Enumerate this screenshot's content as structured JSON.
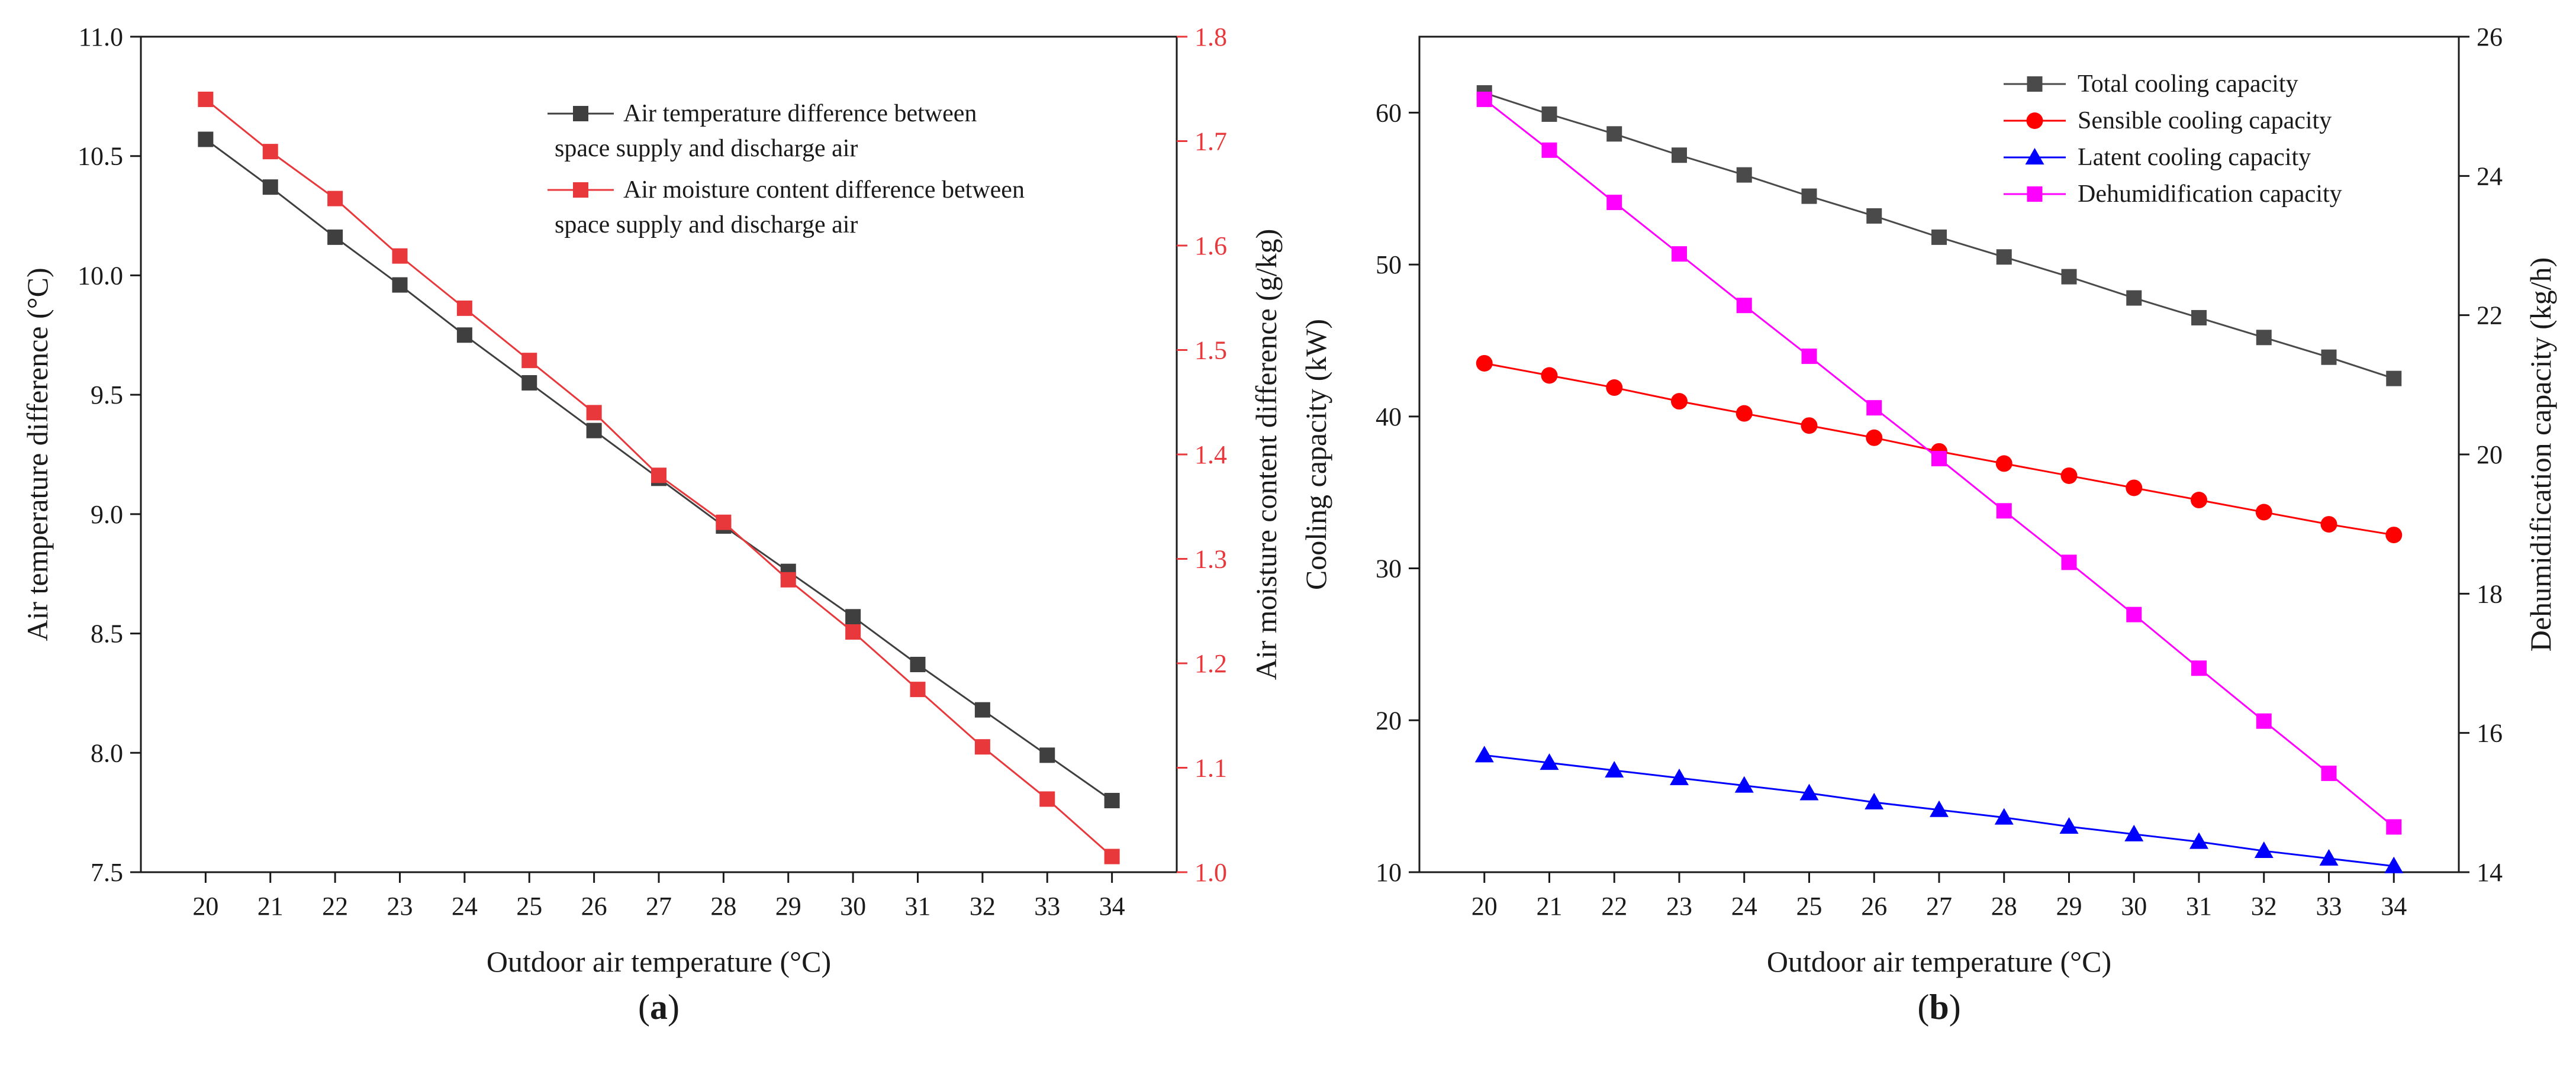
{
  "chart_data": [
    {
      "type": "line",
      "panel_label": "(a)",
      "panel_letter": "a",
      "xlabel": "Outdoor air temperature (°C)",
      "ylabel": "Air temperature difference (°C)",
      "y2label": "Air moisture content difference (g/kg)",
      "x": [
        20,
        21,
        22,
        23,
        24,
        25,
        26,
        27,
        28,
        29,
        30,
        31,
        32,
        33,
        34
      ],
      "xlim": [
        19,
        35
      ],
      "ylim": [
        7.5,
        11.0
      ],
      "yticks": [
        "7.5",
        "8.0",
        "8.5",
        "9.0",
        "9.5",
        "10.0",
        "10.5",
        "11.0"
      ],
      "y2lim": [
        1.0,
        1.8
      ],
      "y2ticks": [
        "1.0",
        "1.1",
        "1.2",
        "1.3",
        "1.4",
        "1.5",
        "1.6",
        "1.7",
        "1.8"
      ],
      "legend_position": "top-right",
      "series": [
        {
          "name_lines": [
            "Air temperature difference between",
            "space supply and discharge air"
          ],
          "axis": "left",
          "color": "#3f3f3f",
          "marker": "square",
          "values": [
            10.57,
            10.37,
            10.16,
            9.96,
            9.75,
            9.55,
            9.35,
            9.15,
            8.95,
            8.76,
            8.57,
            8.37,
            8.18,
            7.99,
            7.8
          ]
        },
        {
          "name_lines": [
            "Air moisture content difference between",
            "space supply and discharge air"
          ],
          "axis": "right",
          "color": "#e8383b",
          "marker": "square",
          "values": [
            1.74,
            1.69,
            1.645,
            1.59,
            1.54,
            1.49,
            1.44,
            1.38,
            1.335,
            1.28,
            1.23,
            1.175,
            1.12,
            1.07,
            1.015
          ]
        }
      ]
    },
    {
      "type": "line",
      "panel_label": "(b)",
      "panel_letter": "b",
      "xlabel": "Outdoor air temperature (°C)",
      "ylabel": "Cooling capacity (kW)",
      "y2label": "Dehumidification capacity (kg/h)",
      "x": [
        20,
        21,
        22,
        23,
        24,
        25,
        26,
        27,
        28,
        29,
        30,
        31,
        32,
        33,
        34
      ],
      "xlim": [
        19,
        35
      ],
      "ylim": [
        10,
        65
      ],
      "yticks": [
        "10",
        "20",
        "30",
        "40",
        "50",
        "60"
      ],
      "y2lim": [
        14,
        26
      ],
      "y2ticks": [
        "14",
        "16",
        "18",
        "20",
        "22",
        "24",
        "26"
      ],
      "legend_position": "top-right",
      "series": [
        {
          "name": "Total cooling capacity",
          "axis": "left",
          "color": "#4a4a4a",
          "marker": "square",
          "values": [
            61.3,
            59.9,
            58.6,
            57.2,
            55.9,
            54.5,
            53.2,
            51.8,
            50.5,
            49.2,
            47.8,
            46.5,
            45.2,
            43.9,
            42.5
          ]
        },
        {
          "name": "Sensible cooling capacity",
          "axis": "left",
          "color": "#ff0000",
          "marker": "circle",
          "values": [
            43.5,
            42.7,
            41.9,
            41.0,
            40.2,
            39.4,
            38.6,
            37.7,
            36.9,
            36.1,
            35.3,
            34.5,
            33.7,
            32.9,
            32.2
          ]
        },
        {
          "name": "Latent cooling capacity",
          "axis": "left",
          "color": "#0000ff",
          "marker": "triangle",
          "values": [
            17.7,
            17.2,
            16.7,
            16.2,
            15.7,
            15.2,
            14.6,
            14.1,
            13.6,
            13.0,
            12.5,
            12.0,
            11.4,
            10.9,
            10.4
          ]
        },
        {
          "name": "Dehumidification capacity",
          "axis": "right",
          "color": "#ff00ff",
          "marker": "square",
          "values": [
            25.1,
            24.37,
            23.62,
            22.88,
            22.14,
            21.41,
            20.67,
            19.94,
            19.19,
            18.45,
            17.7,
            16.93,
            16.17,
            15.42,
            14.65
          ]
        }
      ]
    }
  ]
}
